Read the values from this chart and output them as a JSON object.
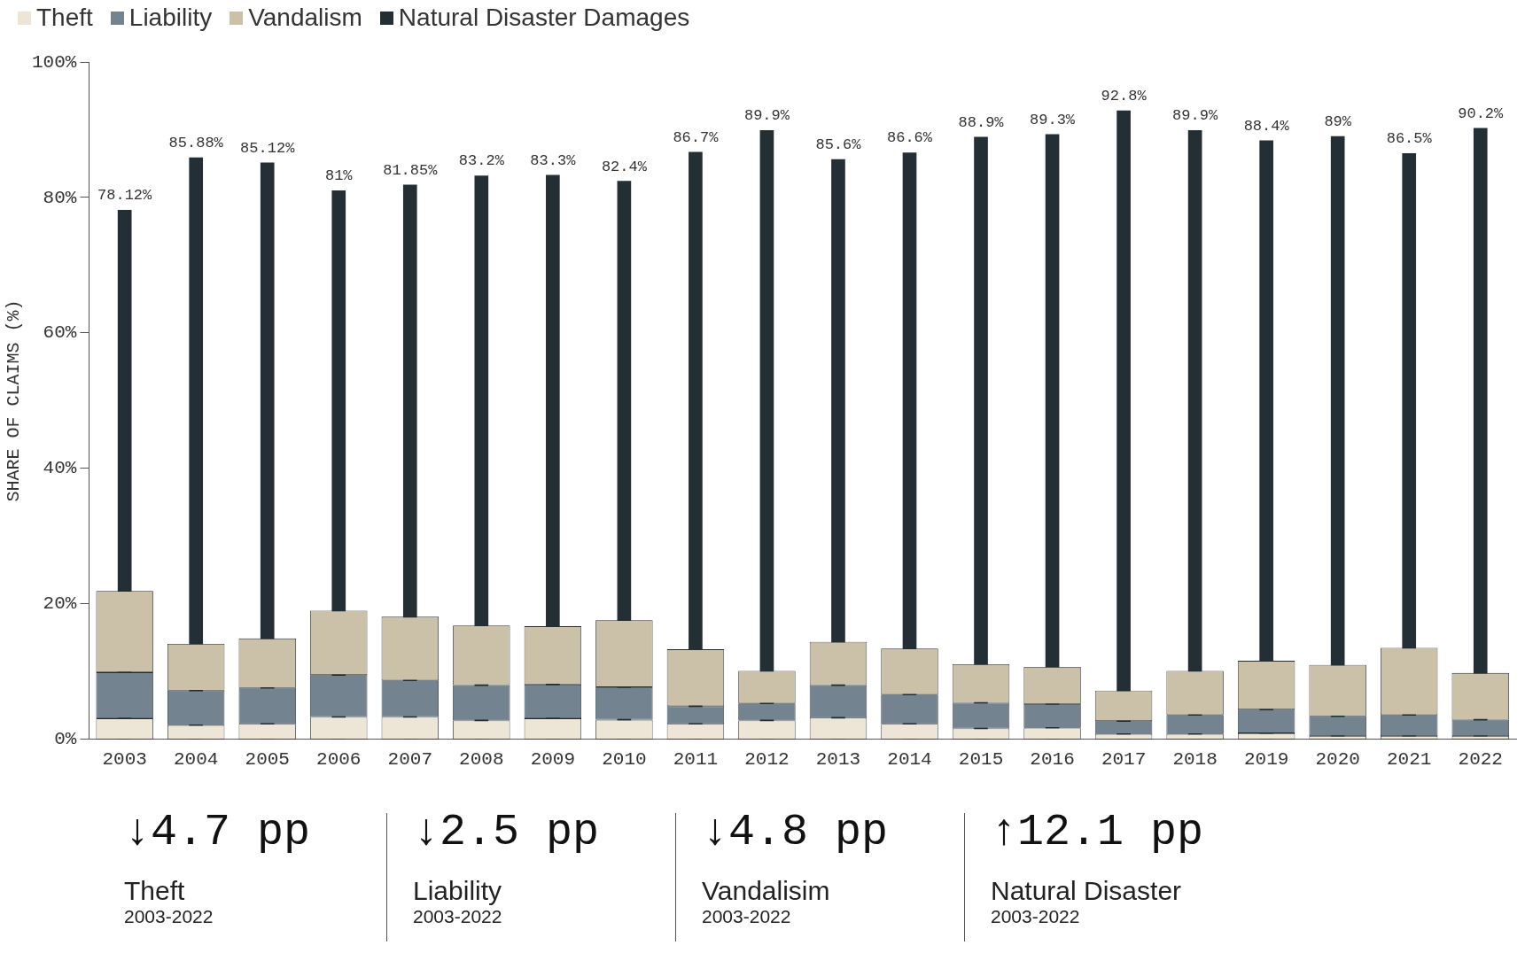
{
  "chart_data": [
    {
      "type": "bar",
      "stacked": true,
      "legend": "top left",
      "tick_labels": false,
      "categories": [
        "2003",
        "2004",
        "2005",
        "2006",
        "2007",
        "2008",
        "2009",
        "2010",
        "2011",
        "2012",
        "2013",
        "2014",
        "2015",
        "2016",
        "2017",
        "2018",
        "2019",
        "2020",
        "2021",
        "2022"
      ],
      "ylim": [
        0,
        100
      ],
      "series": [
        {
          "name": "Theft",
          "color": "#ede6d6",
          "values": [
            3.1,
            2.1,
            2.3,
            3.3,
            3.3,
            2.8,
            3.1,
            2.9,
            2.3,
            2.8,
            3.2,
            2.3,
            1.6,
            1.7,
            0.8,
            0.8,
            0.9,
            0.5,
            0.5,
            0.5
          ]
        },
        {
          "name": "Liability",
          "color": "#73838f",
          "values": [
            6.8,
            5.1,
            5.3,
            6.2,
            5.4,
            5.2,
            5.0,
            4.8,
            2.6,
            2.5,
            4.8,
            4.3,
            3.8,
            3.5,
            1.9,
            2.8,
            3.5,
            2.9,
            3.1,
            2.4
          ]
        },
        {
          "name": "Vandalism",
          "color": "#cbc1a8",
          "values": [
            12.0,
            6.9,
            7.3,
            9.5,
            9.4,
            8.8,
            8.6,
            9.9,
            8.4,
            4.8,
            6.4,
            6.8,
            5.7,
            5.5,
            4.5,
            6.5,
            7.2,
            7.6,
            9.9,
            6.9
          ]
        }
      ]
    },
    {
      "type": "bar",
      "ylabel": "SHARE OF CLAIMS (%)",
      "legend": "top left",
      "categories": [
        "2003",
        "2004",
        "2005",
        "2006",
        "2007",
        "2008",
        "2009",
        "2010",
        "2011",
        "2012",
        "2013",
        "2014",
        "2015",
        "2016",
        "2017",
        "2018",
        "2019",
        "2020",
        "2021",
        "2022"
      ],
      "ylim": [
        0,
        100
      ],
      "yticks": [
        {
          "value": 0,
          "label": "0%"
        },
        {
          "value": 20,
          "label": "20%"
        },
        {
          "value": 40,
          "label": "40%"
        },
        {
          "value": 60,
          "label": "60%"
        },
        {
          "value": 80,
          "label": "80%"
        },
        {
          "value": 100,
          "label": "100%"
        }
      ],
      "series": [
        {
          "name": "Natural Disaster Damages",
          "color": "#232e35",
          "values": [
            78.12,
            85.88,
            85.12,
            81,
            81.85,
            83.2,
            83.3,
            82.4,
            86.7,
            89.9,
            85.6,
            86.6,
            88.9,
            89.3,
            92.8,
            89.9,
            88.4,
            89,
            86.5,
            90.2
          ],
          "value_labels": [
            "78.12%",
            "85.88%",
            "85.12%",
            "81%",
            "81.85%",
            "83.2%",
            "83.3%",
            "82.4%",
            "86.7%",
            "89.9%",
            "85.6%",
            "86.6%",
            "88.9%",
            "89.3%",
            "92.8%",
            "89.9%",
            "88.4%",
            "89%",
            "86.5%",
            "90.2%"
          ]
        }
      ]
    },
    {
      "type": "other",
      "annotations": [
        "↓4.7 pp",
        "Theft",
        "2003-2022",
        "↓2.5 pp",
        "Liability",
        "2003-2022",
        "↓4.8 pp",
        "Vandalisim",
        "2003-2022",
        "↑12.1 pp",
        "Natural Disaster",
        "2003-2022"
      ]
    }
  ]
}
